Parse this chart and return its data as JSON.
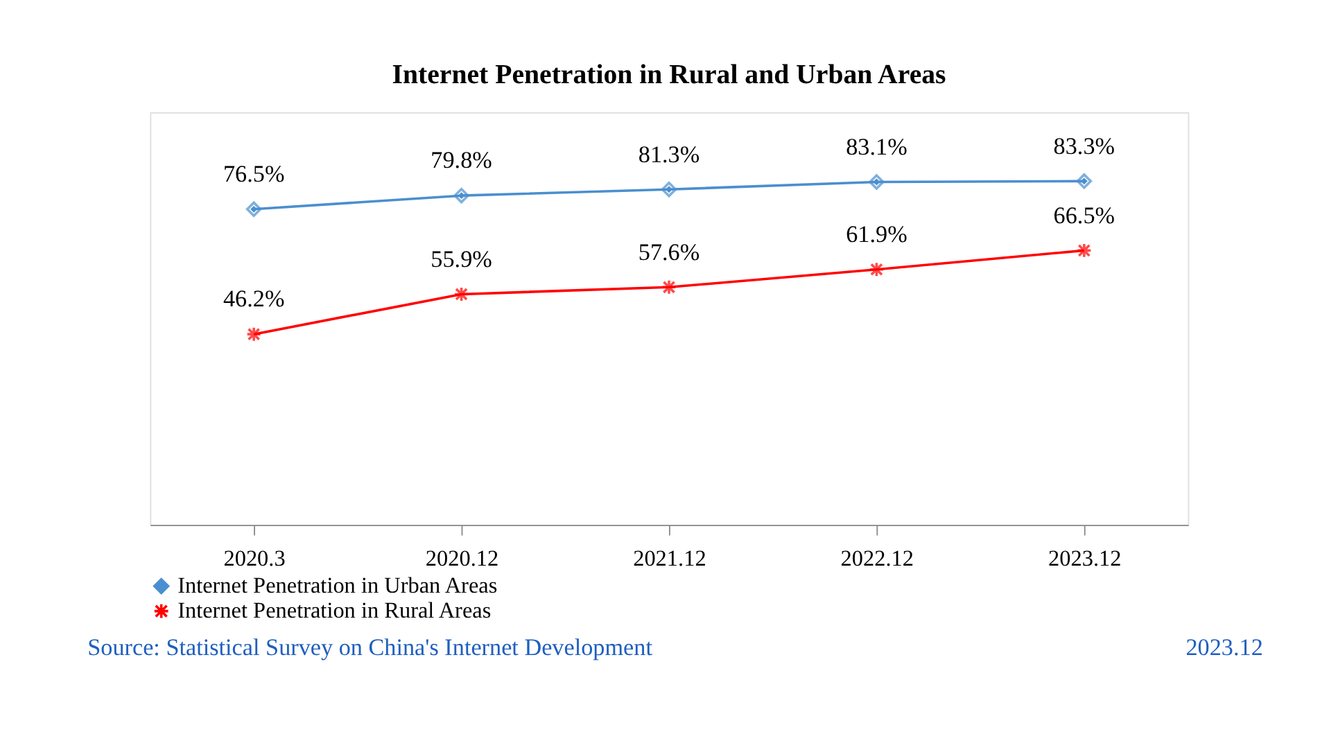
{
  "chart_data": {
    "type": "line",
    "title": "Internet Penetration in Rural and Urban Areas",
    "categories": [
      "2020.3",
      "2020.12",
      "2021.12",
      "2022.12",
      "2023.12"
    ],
    "series": [
      {
        "name": "Internet Penetration in Urban Areas",
        "color": "#4a8fd0",
        "marker": "diamond",
        "values": [
          76.5,
          79.8,
          81.3,
          83.1,
          83.3
        ],
        "value_labels": [
          "76.5%",
          "79.8%",
          "81.3%",
          "83.1%",
          "83.3%"
        ]
      },
      {
        "name": "Internet Penetration in Rural Areas",
        "color": "#ff0000",
        "marker": "cross",
        "values": [
          46.2,
          55.9,
          57.6,
          61.9,
          66.5
        ],
        "value_labels": [
          "46.2%",
          "55.9%",
          "57.6%",
          "61.9%",
          "66.5%"
        ]
      }
    ],
    "ylim": [
      0,
      100
    ],
    "tick_labels": "x",
    "grid": false,
    "legend": "bottom",
    "line_style": "solid",
    "annotations": [
      "Source: Statistical Survey on China's Internet Development",
      "2023.12"
    ]
  }
}
